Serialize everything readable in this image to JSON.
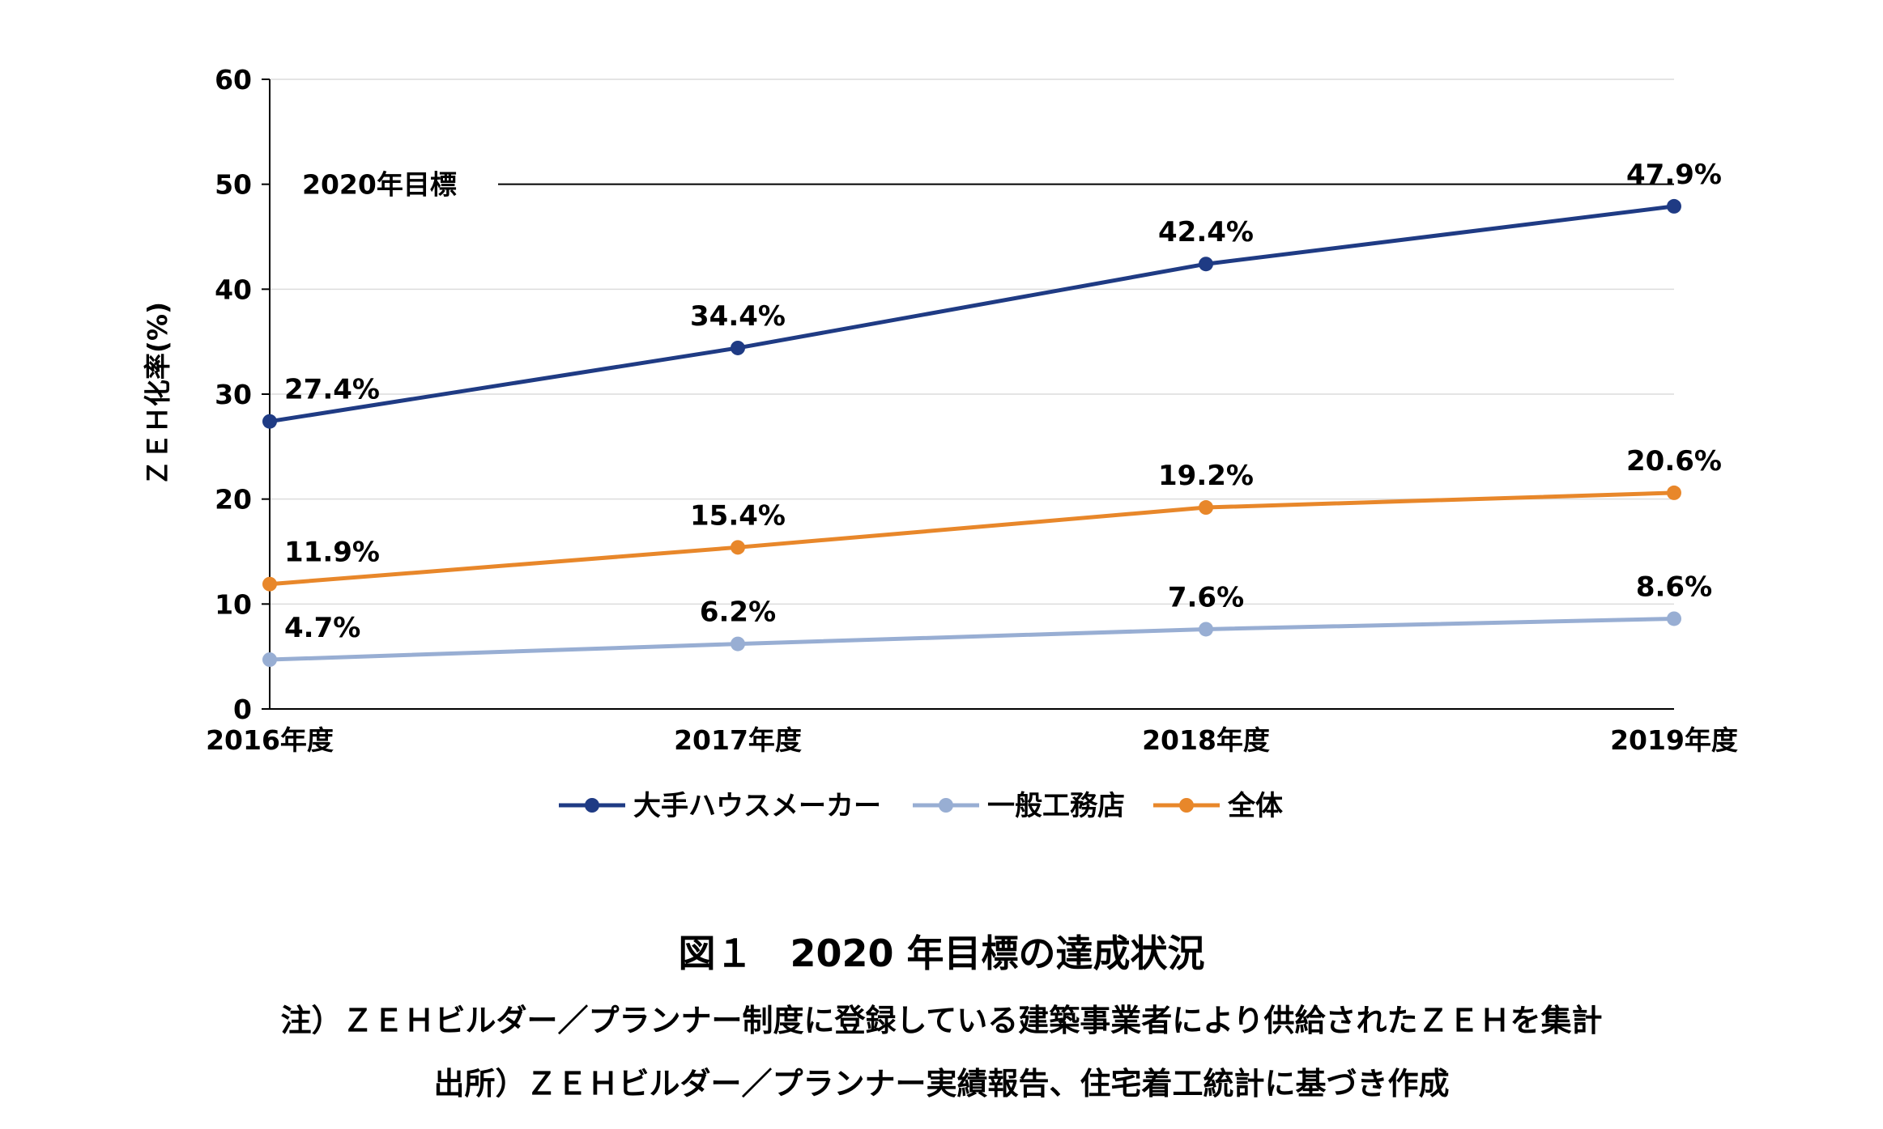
{
  "chart_data": {
    "type": "line",
    "categories": [
      "2016年度",
      "2017年度",
      "2018年度",
      "2019年度"
    ],
    "series": [
      {
        "name": "大手ハウスメーカー",
        "values": [
          27.4,
          34.4,
          42.4,
          47.9
        ],
        "labels": [
          "27.4%",
          "34.4%",
          "42.4%",
          "47.9%"
        ],
        "color": "#1f3b84"
      },
      {
        "name": "一般工務店",
        "values": [
          4.7,
          6.2,
          7.6,
          8.6
        ],
        "labels": [
          "4.7%",
          "6.2%",
          "7.6%",
          "8.6%"
        ],
        "color": "#98aed3"
      },
      {
        "name": "全体",
        "values": [
          11.9,
          15.4,
          19.2,
          20.6
        ],
        "labels": [
          "11.9%",
          "15.4%",
          "19.2%",
          "20.6%"
        ],
        "color": "#e8872a"
      }
    ],
    "ylabel": "ＺＥＨ化率(%)",
    "ylim": [
      0,
      60
    ],
    "yticks": [
      0,
      10,
      20,
      30,
      40,
      50,
      60
    ],
    "grid": true,
    "legend_position": "bottom",
    "target_line": {
      "value": 50,
      "label": "2020年目標",
      "color": "#000000"
    }
  },
  "caption": {
    "title": "図１　2020 年目標の達成状況",
    "note": "注）ＺＥＨビルダー／プランナー制度に登録している建築事業者により供給されたＺＥＨを集計",
    "source": "出所）ＺＥＨビルダー／プランナー実績報告、住宅着工統計に基づき作成"
  }
}
